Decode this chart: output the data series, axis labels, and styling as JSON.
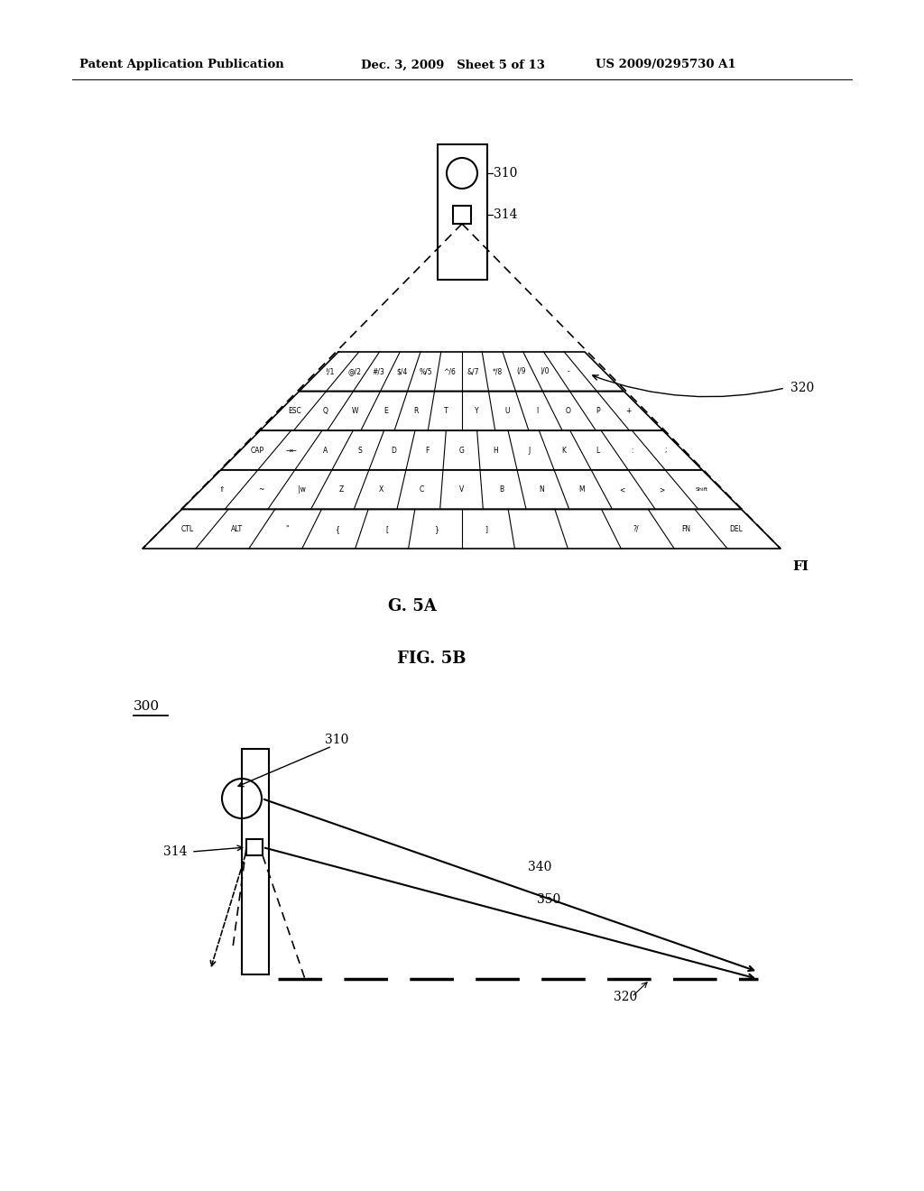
{
  "bg_color": "#ffffff",
  "header_left": "Patent Application Publication",
  "header_mid": "Dec. 3, 2009   Sheet 5 of 13",
  "header_right": "US 2009/0295730 A1",
  "fig5a_label": "G. 5A",
  "fig5b_label": "FIG. 5B",
  "fi_label": "FI",
  "label_300": "300",
  "label_310_top": "310",
  "label_314_top": "314",
  "label_320_top": "320",
  "label_310_bot": "310",
  "label_314_bot": "314",
  "label_340": "340",
  "label_350": "350",
  "label_320_bot": "320"
}
